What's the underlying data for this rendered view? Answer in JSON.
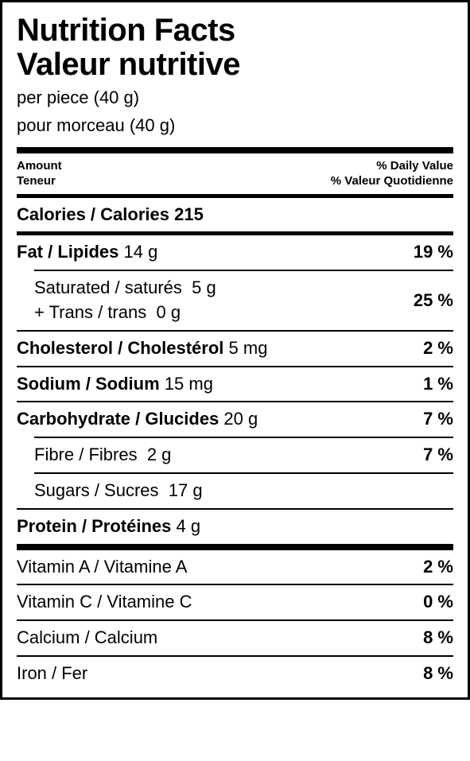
{
  "colors": {
    "text": "#000000",
    "background": "#ffffff",
    "rule": "#000000"
  },
  "title_en": "Nutrition Facts",
  "title_fr": "Valeur nutritive",
  "serving_en": "per piece (40 g)",
  "serving_fr": "pour morceau (40 g)",
  "header": {
    "amount_en": "Amount",
    "amount_fr": "Teneur",
    "dv_en": "% Daily Value",
    "dv_fr": "% Valeur Quotidienne"
  },
  "calories": {
    "label": "Calories / Calories",
    "value": "215"
  },
  "nutrients": {
    "fat": {
      "label": "Fat / Lipides",
      "amount": "14 g",
      "dv": "19 %"
    },
    "sat": {
      "label": "Saturated / saturés",
      "amount": "5 g"
    },
    "trans": {
      "label": "+ Trans / trans",
      "amount": "0 g"
    },
    "sat_trans_dv": "25 %",
    "chol": {
      "label": "Cholesterol / Cholestérol",
      "amount": "5 mg",
      "dv": "2 %"
    },
    "sodium": {
      "label": "Sodium / Sodium",
      "amount": "15 mg",
      "dv": "1 %"
    },
    "carb": {
      "label": "Carbohydrate / Glucides",
      "amount": "20 g",
      "dv": "7 %"
    },
    "fibre": {
      "label": "Fibre / Fibres",
      "amount": "2 g",
      "dv": "7 %"
    },
    "sugars": {
      "label": "Sugars / Sucres",
      "amount": "17 g"
    },
    "protein": {
      "label": "Protein / Protéines",
      "amount": "4 g"
    }
  },
  "vitamins": {
    "vit_a": {
      "label": "Vitamin A / Vitamine A",
      "dv": "2 %"
    },
    "vit_c": {
      "label": "Vitamin C / Vitamine C",
      "dv": "0 %"
    },
    "calcium": {
      "label": "Calcium / Calcium",
      "dv": "8 %"
    },
    "iron": {
      "label": "Iron / Fer",
      "dv": "8 %"
    }
  }
}
